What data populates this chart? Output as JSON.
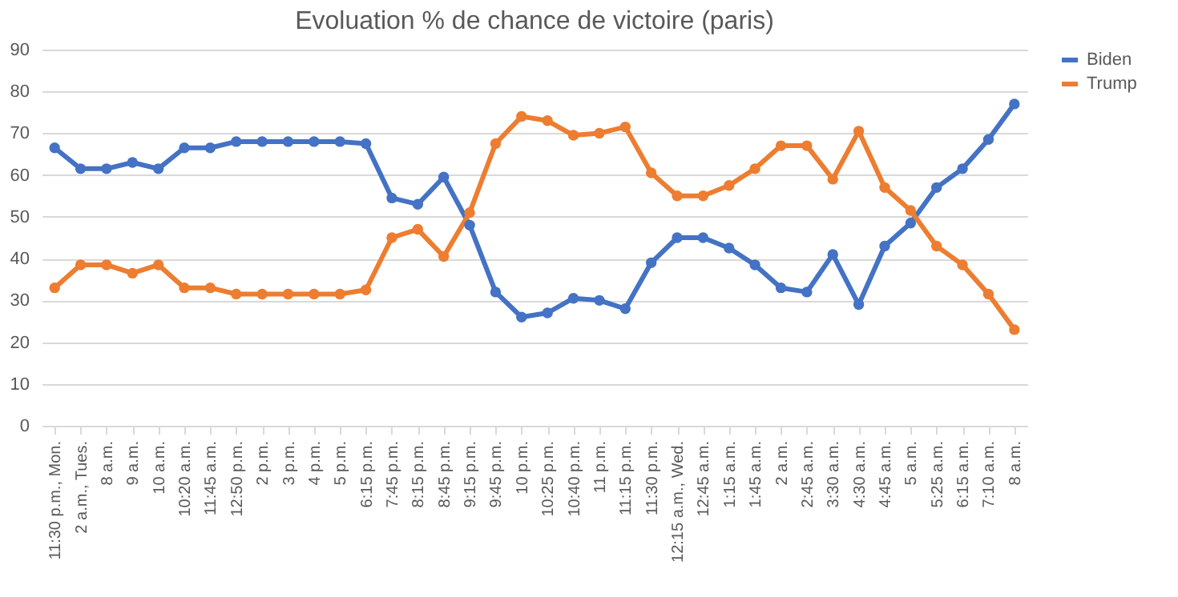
{
  "chart_data": {
    "type": "line",
    "title": "Evoluation % de chance de victoire (paris)",
    "categories": [
      "11:30 p.m., Mon.",
      "2 a.m., Tues.",
      "8 a.m.",
      "9 a.m.",
      "10 a.m.",
      "10:20 a.m.",
      "11:45 a.m.",
      "12:50 p.m.",
      "2 p.m.",
      "3 p.m.",
      "4 p.m.",
      "5 p.m.",
      "6:15 p.m.",
      "7:45 p.m.",
      "8:15 p.m.",
      "8:45 p.m.",
      "9:15 p.m.",
      "9:45 p.m.",
      "10 p.m.",
      "10:25 p.m.",
      "10:40 p.m.",
      "11 p.m.",
      "11:15 p.m.",
      "11:30 p.m.",
      "12:15 a.m., Wed.",
      "12:45 a.m.",
      "1:15 a.m.",
      "1:45 a.m.",
      "2 a.m.",
      "2:45 a.m.",
      "3:30 a.m.",
      "4:30 a.m.",
      "4:45 a.m.",
      "5 a.m.",
      "5:25 a.m.",
      "6:15 a.m.",
      "7:10 a.m.",
      "8 a.m."
    ],
    "series": [
      {
        "name": "Biden",
        "color": "#4472c4",
        "values": [
          66.5,
          61.5,
          61.5,
          63,
          61.5,
          66.5,
          66.5,
          68,
          68,
          68,
          68,
          68,
          67.5,
          54.5,
          53,
          59.5,
          48,
          32,
          26,
          27,
          30.5,
          30,
          28,
          39,
          45,
          45,
          42.5,
          38.5,
          33,
          32,
          41,
          29,
          43,
          48.5,
          57,
          61.5,
          68.5,
          77
        ]
      },
      {
        "name": "Trump",
        "color": "#ed7d31",
        "values": [
          33,
          38.5,
          38.5,
          36.5,
          38.5,
          33,
          33,
          31.5,
          31.5,
          31.5,
          31.5,
          31.5,
          32.5,
          45,
          47,
          40.5,
          51,
          67.5,
          74,
          73,
          69.5,
          70,
          71.5,
          60.5,
          55,
          55,
          57.5,
          61.5,
          67,
          67,
          59,
          70.5,
          57,
          51.5,
          43,
          38.5,
          31.5,
          23
        ]
      }
    ],
    "ylim": [
      0,
      90
    ],
    "yticks": [
      0,
      10,
      20,
      30,
      40,
      50,
      60,
      70,
      80,
      90
    ],
    "grid": "y",
    "legend": "right",
    "marker": "circle",
    "line_style": "solid"
  }
}
